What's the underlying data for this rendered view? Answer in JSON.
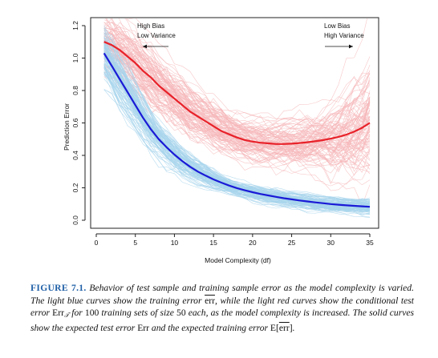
{
  "chart_data": {
    "type": "line",
    "xlabel": "Model Complexity (df)",
    "ylabel": "Prediction Error",
    "xlim": [
      0,
      35
    ],
    "ylim": [
      0.0,
      1.2
    ],
    "x_ticks": [
      0,
      5,
      10,
      15,
      20,
      25,
      30,
      35
    ],
    "y_ticks": [
      0.0,
      0.2,
      0.4,
      0.6,
      0.8,
      1.0,
      1.2
    ],
    "x_tick_labels": [
      "0",
      "5",
      "10",
      "15",
      "20",
      "25",
      "30",
      "35"
    ],
    "y_tick_labels": [
      "0.0",
      "0.2",
      "0.4",
      "0.6",
      "0.8",
      "1.0",
      "1.2"
    ],
    "grid": false,
    "series": [
      {
        "role": "expected_test_error",
        "color": "#e8222a",
        "x": [
          1,
          2,
          3,
          4,
          5,
          6,
          7,
          8,
          9,
          10,
          11,
          12,
          13,
          14,
          15,
          16,
          17,
          18,
          19,
          20,
          21,
          22,
          23,
          24,
          25,
          26,
          27,
          28,
          29,
          30,
          31,
          32,
          33,
          34,
          35
        ],
        "values": [
          1.1,
          1.08,
          1.05,
          1.01,
          0.97,
          0.92,
          0.88,
          0.83,
          0.79,
          0.75,
          0.71,
          0.67,
          0.64,
          0.61,
          0.58,
          0.55,
          0.53,
          0.51,
          0.495,
          0.485,
          0.478,
          0.474,
          0.47,
          0.47,
          0.472,
          0.476,
          0.481,
          0.487,
          0.494,
          0.503,
          0.514,
          0.528,
          0.546,
          0.57,
          0.6
        ]
      },
      {
        "role": "expected_training_error",
        "color": "#1a1ad6",
        "x": [
          1,
          2,
          3,
          4,
          5,
          6,
          7,
          8,
          9,
          10,
          11,
          12,
          13,
          14,
          15,
          16,
          17,
          18,
          19,
          20,
          21,
          22,
          23,
          24,
          25,
          26,
          27,
          28,
          29,
          30,
          31,
          32,
          33,
          34,
          35
        ],
        "values": [
          1.03,
          0.95,
          0.87,
          0.79,
          0.71,
          0.63,
          0.56,
          0.5,
          0.45,
          0.405,
          0.365,
          0.33,
          0.3,
          0.275,
          0.252,
          0.232,
          0.214,
          0.198,
          0.185,
          0.173,
          0.162,
          0.153,
          0.144,
          0.136,
          0.129,
          0.122,
          0.116,
          0.11,
          0.105,
          0.1,
          0.096,
          0.092,
          0.089,
          0.086,
          0.083
        ]
      }
    ],
    "background_curves": [
      {
        "description": "training error curves",
        "count": 100,
        "color": "#a8d4ec"
      },
      {
        "description": "conditional test error curves",
        "count": 100,
        "color": "#f6b5b8"
      }
    ],
    "annotations": [
      {
        "lines": [
          "High Bias",
          "Low Variance"
        ],
        "arrow": "left"
      },
      {
        "lines": [
          "Low Bias",
          "High Variance"
        ],
        "arrow": "right"
      }
    ]
  },
  "caption": {
    "label": "FIGURE 7.1.",
    "t1": " Behavior of test sample and training sample error as the model complexity is varied. The light blue curves show the training error ",
    "err_bar": "err",
    "t2": ", while the light red curves show the conditional test error ",
    "err_t": "Err",
    "t_sub": "𝒯",
    "t3": " for ",
    "n100": "100",
    "t4": " training sets of size ",
    "n50": "50",
    "t5": " each, as the model complexity is increased. The solid curves show the expected test error ",
    "err_plain": "Err",
    "t6": " and the expected training error ",
    "e_prefix": "E[",
    "err_bar2": "err",
    "e_suffix": "]",
    "t7": "."
  }
}
